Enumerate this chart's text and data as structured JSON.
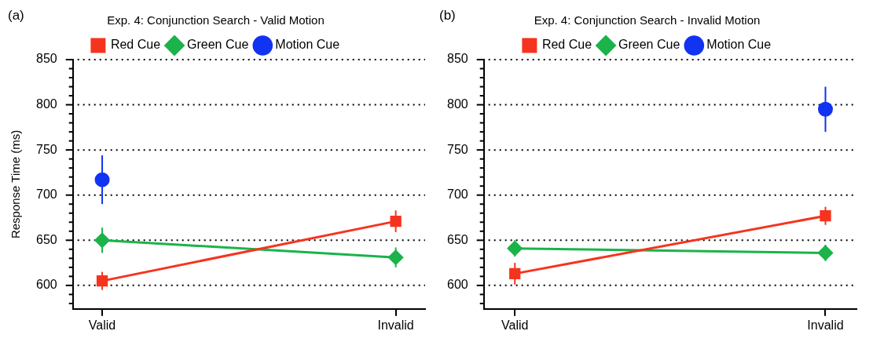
{
  "chart_data": [
    {
      "type": "line",
      "title": "Exp. 4: Conjunction Search - Valid Motion",
      "ylabel": "Response Time (ms)",
      "annotations": [
        "(a)"
      ],
      "categories": [
        "Valid",
        "Invalid"
      ],
      "series": [
        {
          "name": "Red Cue",
          "color": "#f5341f",
          "marker": "square",
          "values": [
            605,
            671
          ],
          "errors": [
            10,
            12
          ]
        },
        {
          "name": "Green Cue",
          "color": "#1bb34a",
          "marker": "diamond",
          "values": [
            650,
            631
          ],
          "errors": [
            14,
            11
          ]
        },
        {
          "name": "Motion Cue",
          "color": "#1133f2",
          "marker": "circle",
          "values": [
            717,
            null
          ],
          "errors": [
            27,
            null
          ]
        }
      ],
      "ylim": [
        574,
        850
      ],
      "yticks": [
        {
          "value": 580,
          "label": null
        },
        {
          "value": 590,
          "label": null
        },
        600,
        {
          "value": 610,
          "label": null
        },
        {
          "value": 620,
          "label": null
        },
        {
          "value": 630,
          "label": null
        },
        {
          "value": 640,
          "label": null
        },
        650,
        {
          "value": 660,
          "label": null
        },
        {
          "value": 670,
          "label": null
        },
        {
          "value": 680,
          "label": null
        },
        {
          "value": 690,
          "label": null
        },
        700,
        {
          "value": 710,
          "label": null
        },
        {
          "value": 720,
          "label": null
        },
        {
          "value": 730,
          "label": null
        },
        {
          "value": 740,
          "label": null
        },
        750,
        {
          "value": 760,
          "label": null
        },
        {
          "value": 770,
          "label": null
        },
        {
          "value": 780,
          "label": null
        },
        {
          "value": 790,
          "label": null
        },
        800,
        {
          "value": 810,
          "label": null
        },
        {
          "value": 820,
          "label": null
        },
        {
          "value": 830,
          "label": null
        },
        {
          "value": 840,
          "label": null
        },
        850
      ],
      "grid": "y",
      "legend": "top"
    },
    {
      "type": "line",
      "title": "Exp. 4: Conjunction Search - Invalid Motion",
      "annotations": [
        "(b)"
      ],
      "categories": [
        "Valid",
        "Invalid"
      ],
      "series": [
        {
          "name": "Red Cue",
          "color": "#f5341f",
          "marker": "square",
          "values": [
            613,
            677
          ],
          "errors": [
            12,
            10
          ]
        },
        {
          "name": "Green Cue",
          "color": "#1bb34a",
          "marker": "diamond",
          "values": [
            641,
            636
          ],
          "errors": [
            9,
            9
          ]
        },
        {
          "name": "Motion Cue",
          "color": "#1133f2",
          "marker": "circle",
          "values": [
            null,
            795
          ],
          "errors": [
            null,
            25
          ]
        }
      ],
      "ylim": [
        574,
        850
      ],
      "yticks": [
        {
          "value": 580,
          "label": null
        },
        {
          "value": 590,
          "label": null
        },
        600,
        {
          "value": 610,
          "label": null
        },
        {
          "value": 620,
          "label": null
        },
        {
          "value": 630,
          "label": null
        },
        {
          "value": 640,
          "label": null
        },
        650,
        {
          "value": 660,
          "label": null
        },
        {
          "value": 670,
          "label": null
        },
        {
          "value": 680,
          "label": null
        },
        {
          "value": 690,
          "label": null
        },
        700,
        {
          "value": 710,
          "label": null
        },
        {
          "value": 720,
          "label": null
        },
        {
          "value": 730,
          "label": null
        },
        {
          "value": 740,
          "label": null
        },
        750,
        {
          "value": 760,
          "label": null
        },
        {
          "value": 770,
          "label": null
        },
        {
          "value": 780,
          "label": null
        },
        {
          "value": 790,
          "label": null
        },
        800,
        {
          "value": 810,
          "label": null
        },
        {
          "value": 820,
          "label": null
        },
        {
          "value": 830,
          "label": null
        },
        {
          "value": 840,
          "label": null
        },
        850
      ],
      "grid": "y",
      "legend": "top"
    }
  ]
}
